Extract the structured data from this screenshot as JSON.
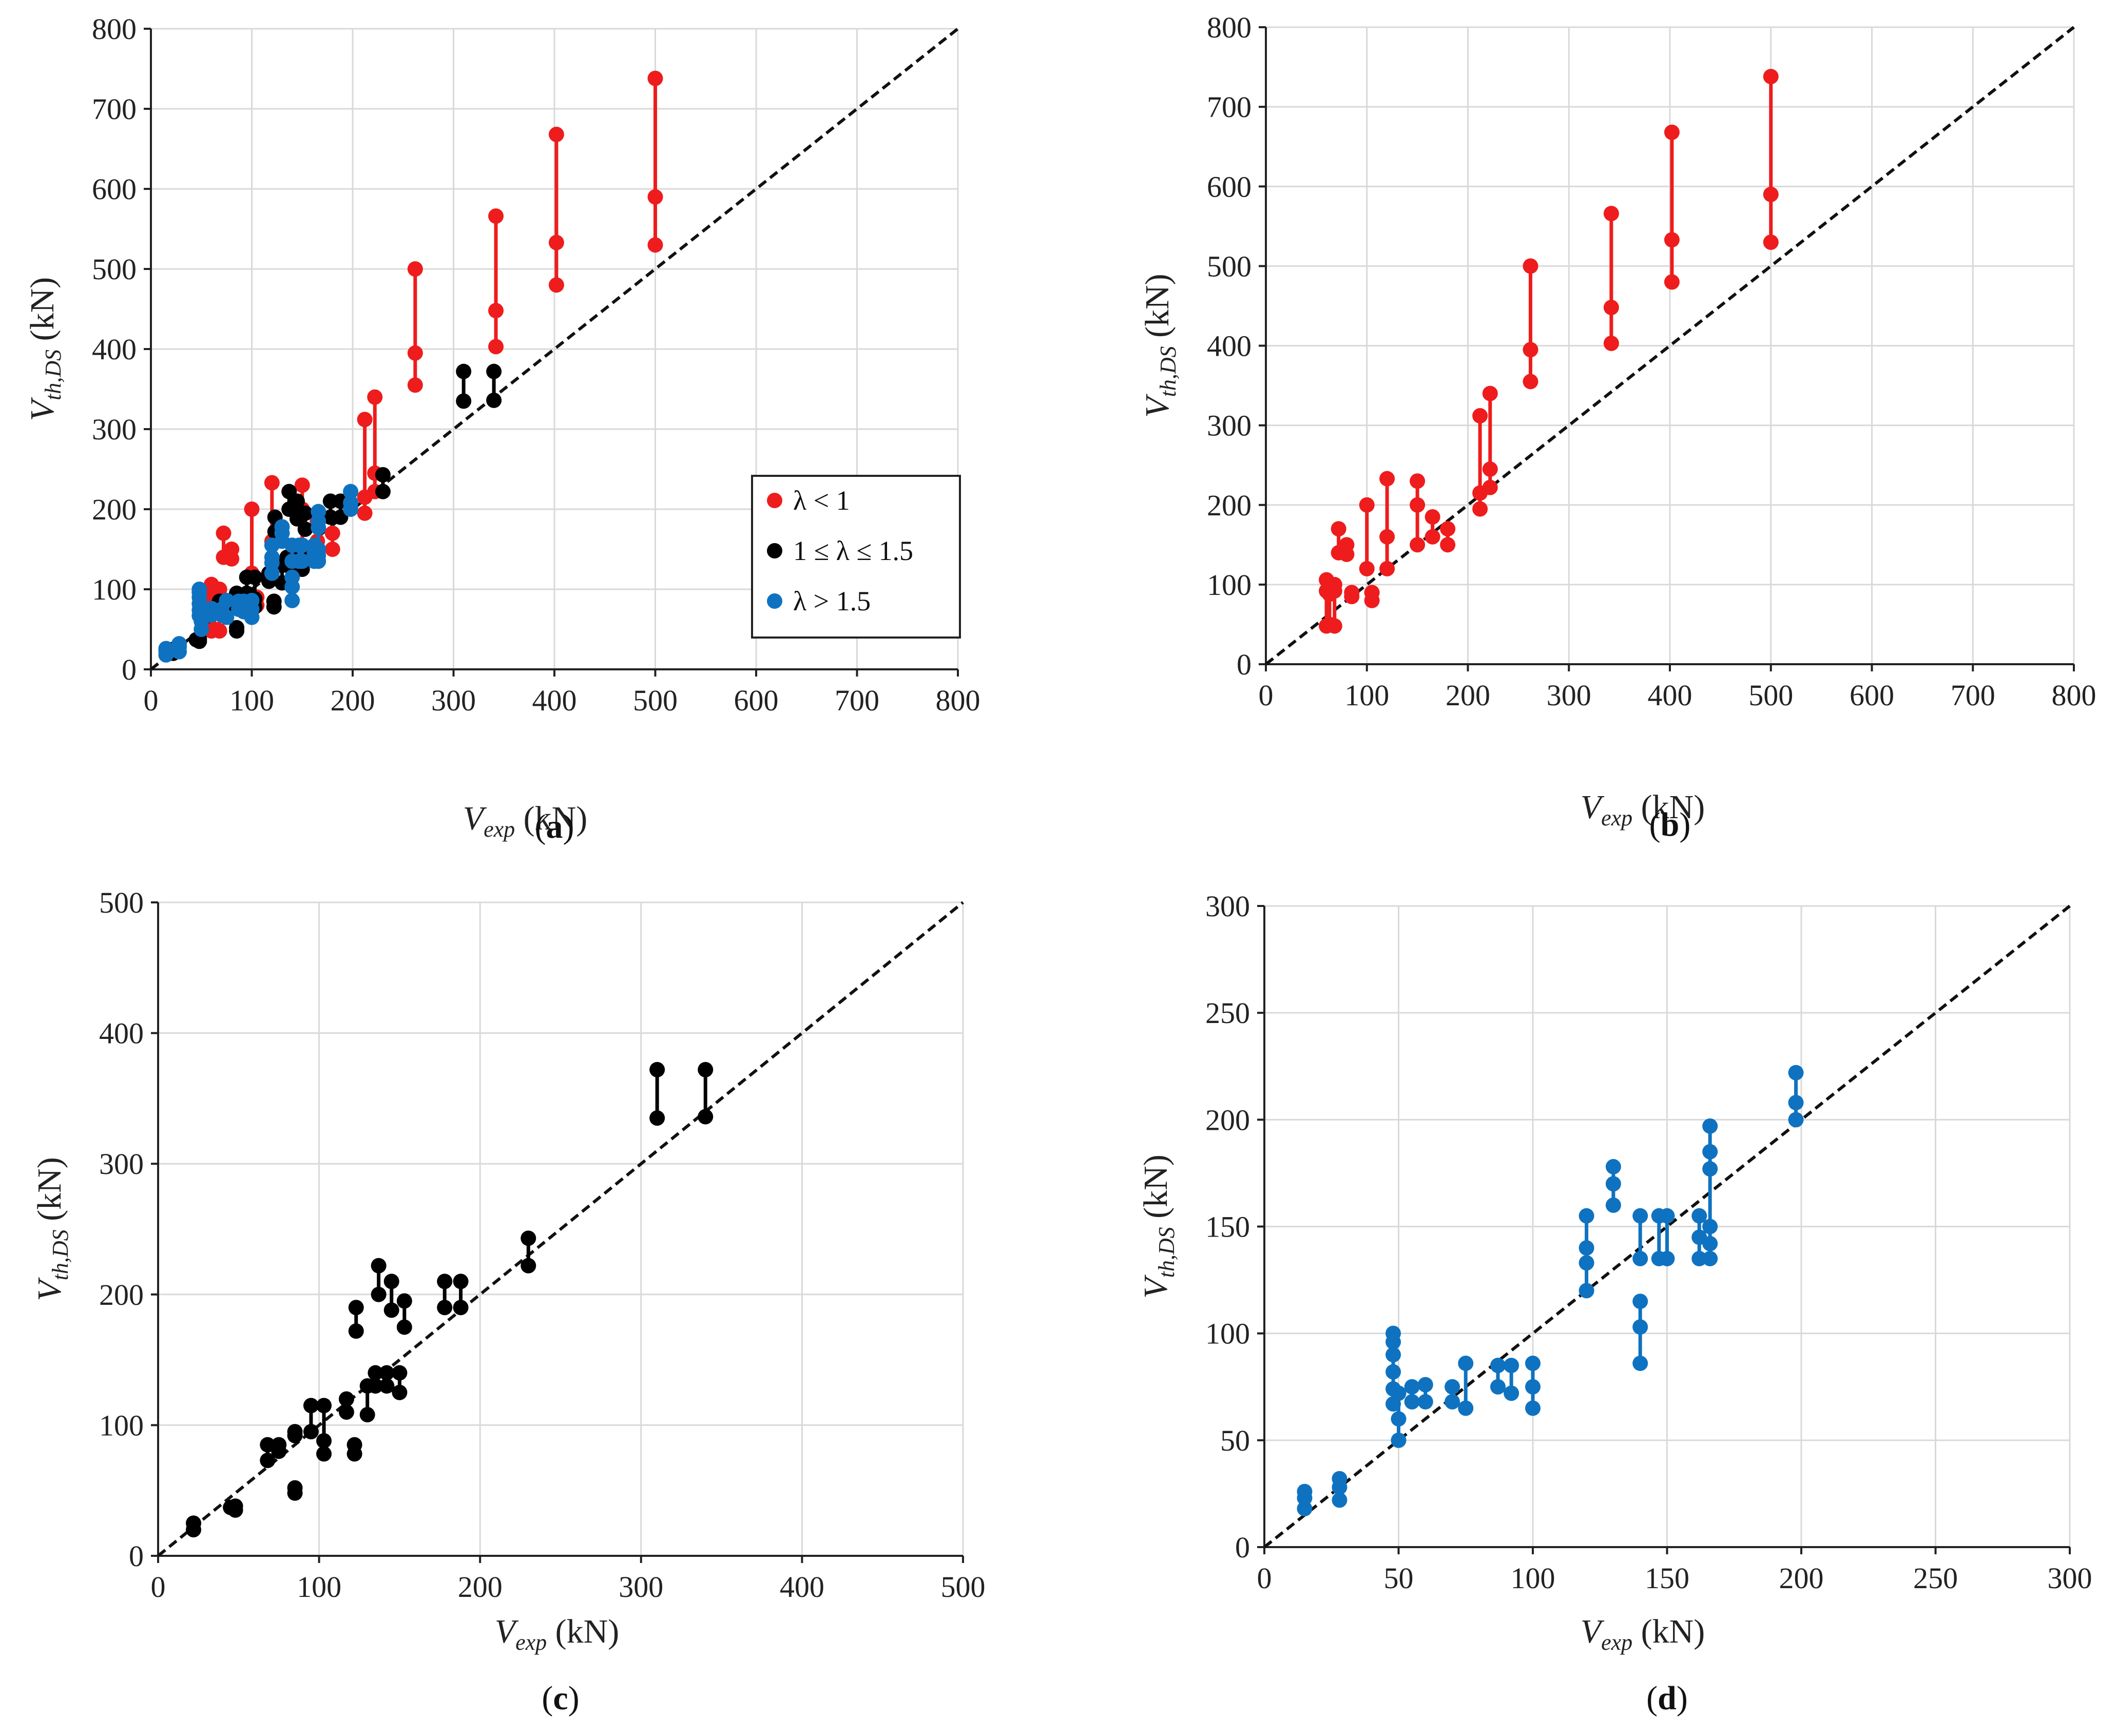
{
  "colors": {
    "red": "#ee1c1c",
    "black": "#000000",
    "blue": "#0f72c0",
    "grid": "#d9d9d9"
  },
  "chart_data": [
    {
      "id": "a",
      "type": "scatter",
      "panel_label": "a",
      "xlabel_main": "V",
      "xlabel_sub": "exp",
      "xlabel_unit": "(kN)",
      "ylabel_main": "V",
      "ylabel_sub": "th,DS",
      "ylabel_unit": "(kN)",
      "xlim": [
        0,
        800
      ],
      "ylim": [
        0,
        800
      ],
      "xticks": [
        "0",
        "100",
        "200",
        "300",
        "400",
        "500",
        "600",
        "700",
        "800"
      ],
      "yticks": [
        "0",
        "100",
        "200",
        "300",
        "400",
        "500",
        "600",
        "700",
        "800"
      ],
      "grid": true,
      "reference_line": "y = x",
      "legend_position": "lower-right",
      "legend": [
        "λ < 1",
        "1 ≤  λ ≤ 1.5",
        "λ > 1.5"
      ],
      "series": [
        {
          "name": "λ < 1",
          "color": "red",
          "groups": [
            {
              "x": 60,
              "y": [
                48,
                92,
                106
              ]
            },
            {
              "x": 63,
              "y": [
                50,
                88,
                100
              ]
            },
            {
              "x": 68,
              "y": [
                48,
                92,
                100
              ]
            },
            {
              "x": 72,
              "y": [
                140,
                170
              ]
            },
            {
              "x": 80,
              "y": [
                138,
                150
              ]
            },
            {
              "x": 85,
              "y": [
                85,
                90
              ]
            },
            {
              "x": 100,
              "y": [
                120,
                200
              ]
            },
            {
              "x": 105,
              "y": [
                80,
                90
              ]
            },
            {
              "x": 120,
              "y": [
                120,
                160,
                233
              ]
            },
            {
              "x": 150,
              "y": [
                150,
                200,
                230
              ]
            },
            {
              "x": 165,
              "y": [
                160,
                185
              ]
            },
            {
              "x": 180,
              "y": [
                150,
                170
              ]
            },
            {
              "x": 212,
              "y": [
                195,
                215,
                312
              ]
            },
            {
              "x": 222,
              "y": [
                222,
                245,
                340
              ]
            },
            {
              "x": 262,
              "y": [
                355,
                395,
                500
              ]
            },
            {
              "x": 342,
              "y": [
                403,
                448,
                566
              ]
            },
            {
              "x": 402,
              "y": [
                480,
                533,
                668
              ]
            },
            {
              "x": 500,
              "y": [
                530,
                590,
                738
              ]
            }
          ]
        },
        {
          "name": "1 ≤  λ ≤ 1.5",
          "color": "black",
          "groups": [
            {
              "x": 22,
              "y": [
                20,
                25
              ]
            },
            {
              "x": 45,
              "y": [
                37
              ]
            },
            {
              "x": 48,
              "y": [
                35,
                38
              ]
            },
            {
              "x": 68,
              "y": [
                73,
                85
              ]
            },
            {
              "x": 75,
              "y": [
                80,
                85
              ]
            },
            {
              "x": 85,
              "y": [
                48,
                52
              ]
            },
            {
              "x": 85,
              "y": [
                92,
                95
              ]
            },
            {
              "x": 95,
              "y": [
                95,
                115
              ]
            },
            {
              "x": 103,
              "y": [
                78,
                88,
                115
              ]
            },
            {
              "x": 117,
              "y": [
                110,
                120
              ]
            },
            {
              "x": 122,
              "y": [
                78,
                85
              ]
            },
            {
              "x": 123,
              "y": [
                172,
                190
              ]
            },
            {
              "x": 130,
              "y": [
                108,
                130
              ]
            },
            {
              "x": 135,
              "y": [
                130,
                140
              ]
            },
            {
              "x": 137,
              "y": [
                200,
                222
              ]
            },
            {
              "x": 142,
              "y": [
                130,
                140
              ]
            },
            {
              "x": 145,
              "y": [
                188,
                210
              ]
            },
            {
              "x": 150,
              "y": [
                125,
                140
              ]
            },
            {
              "x": 153,
              "y": [
                175,
                195
              ]
            },
            {
              "x": 178,
              "y": [
                190,
                210
              ]
            },
            {
              "x": 188,
              "y": [
                190,
                210
              ]
            },
            {
              "x": 230,
              "y": [
                222,
                243
              ]
            },
            {
              "x": 310,
              "y": [
                335,
                372
              ]
            },
            {
              "x": 340,
              "y": [
                336,
                372
              ]
            }
          ]
        },
        {
          "name": "λ > 1.5",
          "color": "blue",
          "groups": [
            {
              "x": 15,
              "y": [
                18,
                23,
                26
              ]
            },
            {
              "x": 28,
              "y": [
                22,
                28,
                32
              ]
            },
            {
              "x": 48,
              "y": [
                67,
                74,
                82,
                90,
                96,
                100
              ]
            },
            {
              "x": 50,
              "y": [
                50,
                60,
                72
              ]
            },
            {
              "x": 55,
              "y": [
                68,
                75
              ]
            },
            {
              "x": 60,
              "y": [
                68,
                76
              ]
            },
            {
              "x": 70,
              "y": [
                68,
                75
              ]
            },
            {
              "x": 75,
              "y": [
                65,
                86
              ]
            },
            {
              "x": 87,
              "y": [
                75,
                85
              ]
            },
            {
              "x": 92,
              "y": [
                72,
                85
              ]
            },
            {
              "x": 100,
              "y": [
                65,
                75,
                86
              ]
            },
            {
              "x": 120,
              "y": [
                120,
                133,
                140,
                155
              ]
            },
            {
              "x": 130,
              "y": [
                160,
                170,
                178
              ]
            },
            {
              "x": 140,
              "y": [
                86,
                103,
                115
              ]
            },
            {
              "x": 140,
              "y": [
                135,
                155
              ]
            },
            {
              "x": 147,
              "y": [
                135,
                155
              ]
            },
            {
              "x": 150,
              "y": [
                135,
                155
              ]
            },
            {
              "x": 162,
              "y": [
                135,
                145,
                155
              ]
            },
            {
              "x": 166,
              "y": [
                135,
                142,
                150,
                177,
                185,
                197
              ]
            },
            {
              "x": 198,
              "y": [
                200,
                208,
                222
              ]
            }
          ]
        }
      ]
    },
    {
      "id": "b",
      "type": "scatter",
      "panel_label": "b",
      "xlabel_main": "V",
      "xlabel_sub": "exp",
      "xlabel_unit": "(kN)",
      "ylabel_main": "V",
      "ylabel_sub": "th,DS",
      "ylabel_unit": "(kN)",
      "xlim": [
        0,
        800
      ],
      "ylim": [
        0,
        800
      ],
      "xticks": [
        "0",
        "100",
        "200",
        "300",
        "400",
        "500",
        "600",
        "700",
        "800"
      ],
      "yticks": [
        "0",
        "100",
        "200",
        "300",
        "400",
        "500",
        "600",
        "700",
        "800"
      ],
      "grid": true,
      "reference_line": "y = x",
      "series_ref": 0
    },
    {
      "id": "c",
      "type": "scatter",
      "panel_label": "c",
      "xlabel_main": "V",
      "xlabel_sub": "exp",
      "xlabel_unit": "(kN)",
      "ylabel_main": "V",
      "ylabel_sub": "th,DS",
      "ylabel_unit": "(kN)",
      "xlim": [
        0,
        500
      ],
      "ylim": [
        0,
        500
      ],
      "xticks": [
        "0",
        "100",
        "200",
        "300",
        "400",
        "500"
      ],
      "yticks": [
        "0",
        "100",
        "200",
        "300",
        "400",
        "500"
      ],
      "grid": true,
      "reference_line": "y = x",
      "series_ref": 1
    },
    {
      "id": "d",
      "type": "scatter",
      "panel_label": "d",
      "xlabel_main": "V",
      "xlabel_sub": "exp",
      "xlabel_unit": "(kN)",
      "ylabel_main": "V",
      "ylabel_sub": "th,DS",
      "ylabel_unit": "(kN)",
      "xlim": [
        0,
        300
      ],
      "ylim": [
        0,
        300
      ],
      "xticks": [
        "0",
        "50",
        "100",
        "150",
        "200",
        "250",
        "300"
      ],
      "yticks": [
        "0",
        "50",
        "100",
        "150",
        "200",
        "250",
        "300"
      ],
      "grid": true,
      "reference_line": "y = x",
      "series_ref": 2
    }
  ]
}
